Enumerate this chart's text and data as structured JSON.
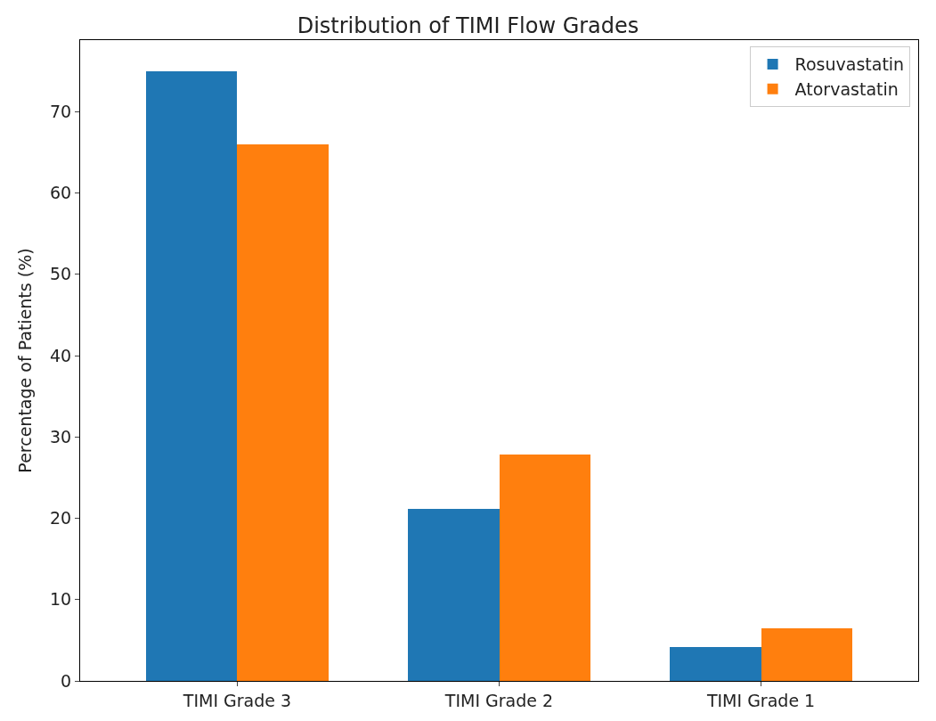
{
  "chart_data": {
    "type": "bar",
    "title": "Distribution of TIMI Flow Grades",
    "ylabel": "Percentage of Patients (%)",
    "categories": [
      "TIMI Grade 3",
      "TIMI Grade 2",
      "TIMI Grade 1"
    ],
    "series": [
      {
        "name": "Rosuvastatin",
        "color": "#1f77b4",
        "values": [
          75,
          21.2,
          4.2
        ]
      },
      {
        "name": "Atorvastatin",
        "color": "#ff7f0e",
        "values": [
          66,
          27.8,
          6.5
        ]
      }
    ],
    "ylim": [
      0,
      78.8
    ],
    "yticks": [
      0,
      10,
      20,
      30,
      40,
      50,
      60,
      70
    ],
    "legend": "top right"
  }
}
